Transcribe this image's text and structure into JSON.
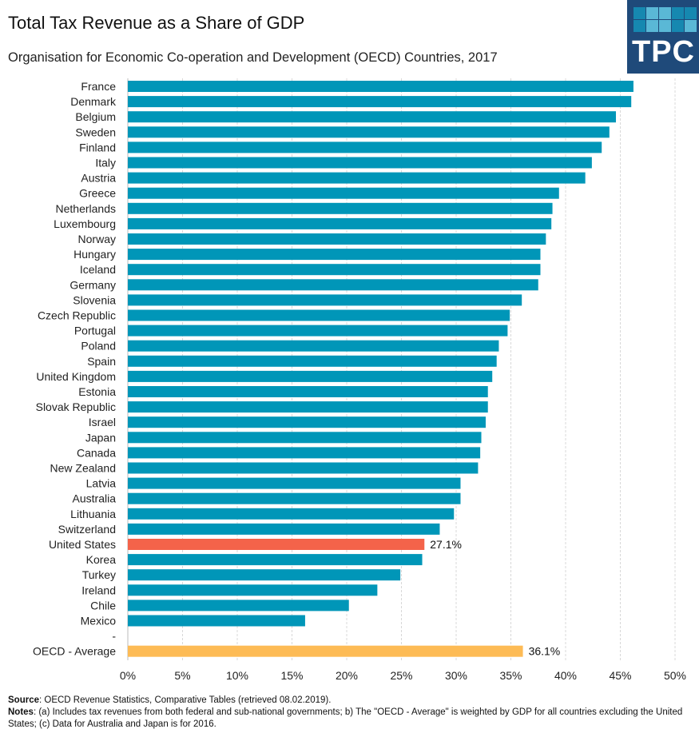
{
  "logo": {
    "text": "TPC",
    "bg": "#1f4a7a",
    "squares": [
      "#1688b0",
      "#5ab8d6",
      "#5ab8d6",
      "#1688b0",
      "#1688b0",
      "#1688b0",
      "#5ab8d6",
      "#5ab8d6",
      "#1688b0",
      "#5ab8d6"
    ]
  },
  "footer": {
    "source_label": "Source",
    "source": ": OECD Revenue Statistics, Comparative Tables (retrieved 08.02.2019).",
    "notes_label": "Notes",
    "notes": ": (a) Includes tax revenues from both federal and sub-national governments; b) The \"OECD - Average\" is weighted by GDP for all countries excluding the United States; (c) Data for Australia and Japan is for 2016."
  },
  "chart_data": {
    "type": "bar",
    "orientation": "horizontal",
    "title": "Total Tax Revenue as a Share of GDP",
    "subtitle": "Organisation for Economic Co-operation and Development (OECD) Countries, 2017",
    "xlim": [
      0,
      50
    ],
    "xticks": [
      "0%",
      "5%",
      "10%",
      "15%",
      "20%",
      "25%",
      "30%",
      "35%",
      "40%",
      "45%",
      "50%"
    ],
    "grid": true,
    "colors": {
      "default": "#0096b8",
      "highlight": "#f4634a",
      "average": "#fdbb55"
    },
    "categories": [
      "France",
      "Denmark",
      "Belgium",
      "Sweden",
      "Finland",
      "Italy",
      "Austria",
      "Greece",
      "Netherlands",
      "Luxembourg",
      "Norway",
      "Hungary",
      "Iceland",
      "Germany",
      "Slovenia",
      "Czech Republic",
      "Portugal",
      "Poland",
      "Spain",
      "United Kingdom",
      "Estonia",
      "Slovak Republic",
      "Israel",
      "Japan",
      "Canada",
      "New Zealand",
      "Latvia",
      "Australia",
      "Lithuania",
      "Switzerland",
      "United States",
      "Korea",
      "Turkey",
      "Ireland",
      "Chile",
      "Mexico",
      "-",
      "OECD - Average"
    ],
    "values": [
      46.2,
      46.0,
      44.6,
      44.0,
      43.3,
      42.4,
      41.8,
      39.4,
      38.8,
      38.7,
      38.2,
      37.7,
      37.7,
      37.5,
      36.0,
      34.9,
      34.7,
      33.9,
      33.7,
      33.3,
      32.9,
      32.9,
      32.7,
      32.3,
      32.2,
      32.0,
      30.4,
      30.4,
      29.8,
      28.5,
      27.1,
      26.9,
      24.9,
      22.8,
      20.2,
      16.2,
      null,
      36.1
    ],
    "highlight": [
      "United States",
      "OECD - Average"
    ],
    "data_labels": {
      "United States": "27.1%",
      "OECD - Average": "36.1%"
    }
  }
}
